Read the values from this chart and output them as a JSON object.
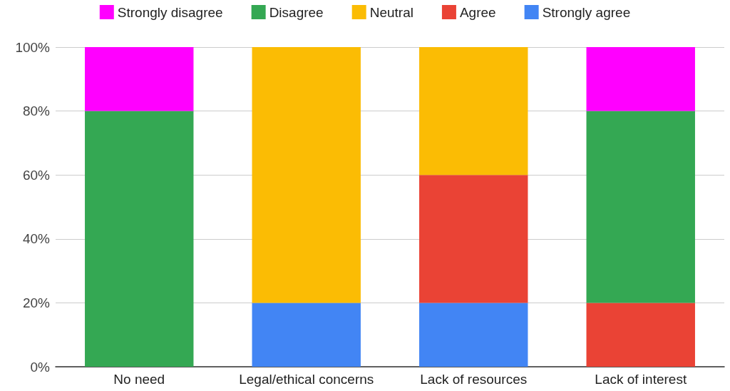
{
  "chart_data": {
    "type": "bar",
    "stacked": true,
    "categories": [
      "No need",
      "Legal/ethical concerns",
      "Lack of resources",
      "Lack of interest"
    ],
    "series": [
      {
        "name": "Strongly agree",
        "color": "#4285f4",
        "values": [
          0,
          20,
          20,
          0
        ]
      },
      {
        "name": "Agree",
        "color": "#ea4335",
        "values": [
          0,
          0,
          40,
          20
        ]
      },
      {
        "name": "Neutral",
        "color": "#fbbc04",
        "values": [
          0,
          80,
          40,
          0
        ]
      },
      {
        "name": "Disagree",
        "color": "#34a853",
        "values": [
          80,
          0,
          0,
          60
        ]
      },
      {
        "name": "Strongly disagree",
        "color": "#ff00ff",
        "values": [
          20,
          0,
          0,
          20
        ]
      }
    ],
    "ylim": [
      0,
      100
    ],
    "yticks": [
      {
        "value": 0,
        "label": "0%"
      },
      {
        "value": 20,
        "label": "20%"
      },
      {
        "value": 40,
        "label": "40%"
      },
      {
        "value": 60,
        "label": "60%"
      },
      {
        "value": 80,
        "label": "80%"
      },
      {
        "value": 100,
        "label": "100%"
      }
    ],
    "grid": "y",
    "legend": "top"
  }
}
